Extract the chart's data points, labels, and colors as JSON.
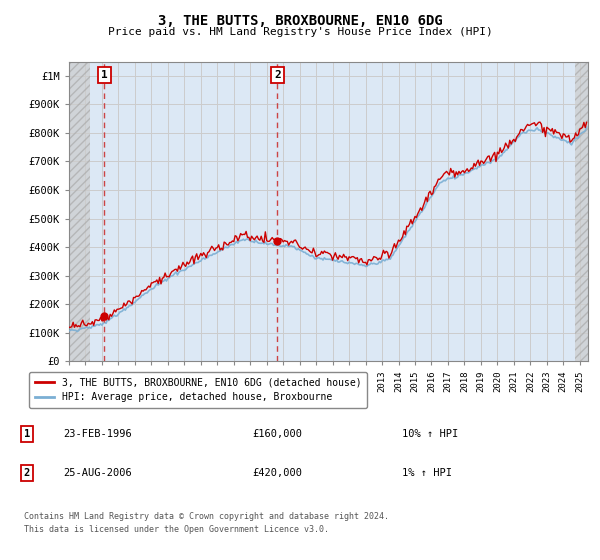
{
  "title": "3, THE BUTTS, BROXBOURNE, EN10 6DG",
  "subtitle": "Price paid vs. HM Land Registry's House Price Index (HPI)",
  "ylabel_vals": [
    0,
    100000,
    200000,
    300000,
    400000,
    500000,
    600000,
    700000,
    800000,
    900000,
    1000000
  ],
  "ylabel_labels": [
    "£0",
    "£100K",
    "£200K",
    "£300K",
    "£400K",
    "£500K",
    "£600K",
    "£700K",
    "£800K",
    "£900K",
    "£1M"
  ],
  "ylim": [
    0,
    1050000
  ],
  "xlim_start": 1994.0,
  "xlim_end": 2025.5,
  "marker1_x": 1996.15,
  "marker1_label": "1",
  "marker1_y": 160000,
  "marker2_x": 2006.65,
  "marker2_label": "2",
  "marker2_y": 420000,
  "sale_color": "#cc0000",
  "hpi_color": "#7bafd4",
  "dashed_line_color": "#cc4444",
  "grid_color": "#cccccc",
  "plot_bg_color": "#dce8f5",
  "hatch_color": "#c8c8c8",
  "legend_line1": "3, THE BUTTS, BROXBOURNE, EN10 6DG (detached house)",
  "legend_line2": "HPI: Average price, detached house, Broxbourne",
  "annot1_date": "23-FEB-1996",
  "annot1_price": "£160,000",
  "annot1_hpi": "10% ↑ HPI",
  "annot2_date": "25-AUG-2006",
  "annot2_price": "£420,000",
  "annot2_hpi": "1% ↑ HPI",
  "footer": "Contains HM Land Registry data © Crown copyright and database right 2024.\nThis data is licensed under the Open Government Licence v3.0.",
  "xtick_years": [
    1994,
    1995,
    1996,
    1997,
    1998,
    1999,
    2000,
    2001,
    2002,
    2003,
    2004,
    2005,
    2006,
    2007,
    2008,
    2009,
    2010,
    2011,
    2012,
    2013,
    2014,
    2015,
    2016,
    2017,
    2018,
    2019,
    2020,
    2021,
    2022,
    2023,
    2024,
    2025
  ]
}
